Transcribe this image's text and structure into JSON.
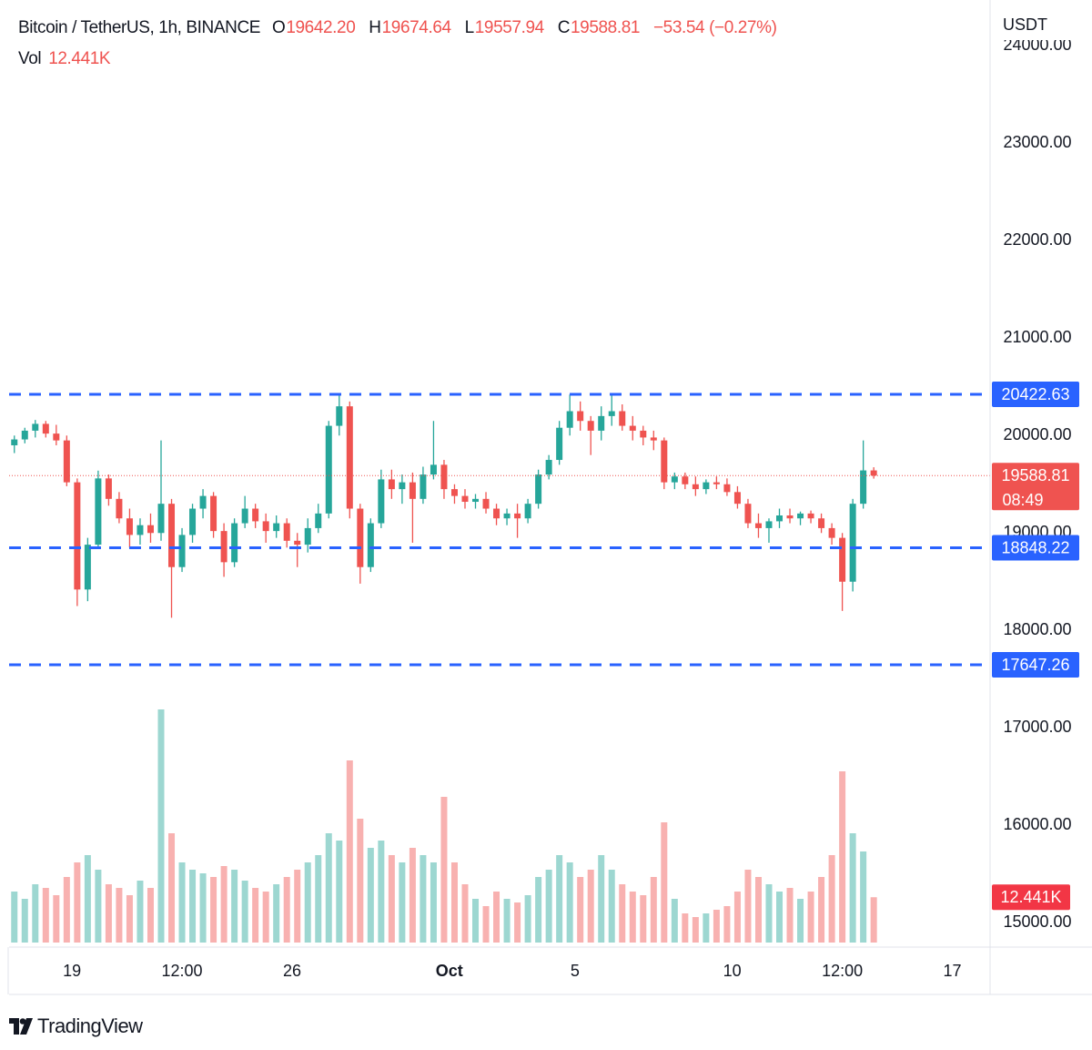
{
  "header": {
    "symbol": "Bitcoin / TetherUS, 1h, BINANCE",
    "ohlc": [
      {
        "label": "O",
        "value": "19642.20"
      },
      {
        "label": "H",
        "value": "19674.64"
      },
      {
        "label": "L",
        "value": "19557.94"
      },
      {
        "label": "C",
        "value": "19588.81"
      }
    ],
    "change": "−53.54 (−0.27%)",
    "volume_name": "Vol",
    "volume_value": "12.441K"
  },
  "chart_data": {
    "type": "candlestick",
    "currency": "USDT",
    "open": [
      19900,
      19960,
      20050,
      20120,
      20020,
      19950,
      19520,
      18420,
      18880,
      19560,
      19350,
      19150,
      18980,
      19080,
      19000,
      19300,
      18650,
      18980,
      19250,
      19380,
      19020,
      18700,
      19100,
      19250,
      19120,
      19020,
      19100,
      18920,
      18880,
      19050,
      19200,
      20100,
      20300,
      19250,
      18650,
      19100,
      19550,
      19450,
      19520,
      19350,
      19600,
      19700,
      19450,
      19380,
      19320,
      19350,
      19250,
      19150,
      19200,
      19150,
      19300,
      19600,
      19750,
      20080,
      20250,
      20150,
      20050,
      20200,
      20250,
      20100,
      20050,
      19980,
      19950,
      19520,
      19580,
      19500,
      19450,
      19520,
      19500,
      19420,
      19300,
      19100,
      19050,
      19120,
      19180,
      19150,
      19200,
      19150,
      19050,
      18950,
      18500,
      19300,
      19642.2
    ],
    "high": [
      20000,
      20080,
      20160,
      20150,
      20110,
      20000,
      19560,
      18950,
      19640,
      19600,
      19420,
      19250,
      19150,
      19200,
      19950,
      19350,
      19050,
      19300,
      19450,
      19420,
      19100,
      19150,
      19380,
      19300,
      19200,
      19180,
      19150,
      19000,
      19150,
      19300,
      20150,
      20420,
      20350,
      19300,
      19150,
      19650,
      19650,
      19600,
      19620,
      19680,
      20150,
      19750,
      19500,
      19450,
      19400,
      19420,
      19300,
      19250,
      19300,
      19350,
      19650,
      19800,
      20150,
      20420,
      20350,
      20200,
      20300,
      20430,
      20320,
      20200,
      20100,
      20050,
      19980,
      19620,
      19620,
      19580,
      19550,
      19580,
      19560,
      19480,
      19350,
      19200,
      19150,
      19250,
      19250,
      19220,
      19230,
      19200,
      19100,
      19000,
      19350,
      19950,
      19674.64
    ],
    "low": [
      19820,
      19920,
      19980,
      19980,
      19900,
      19480,
      18250,
      18300,
      18850,
      19280,
      19100,
      18850,
      18880,
      18900,
      18920,
      18130,
      18600,
      18900,
      19150,
      18950,
      18550,
      18650,
      19050,
      19050,
      18900,
      18950,
      18850,
      18650,
      18800,
      19000,
      19150,
      20000,
      19150,
      18480,
      18600,
      19050,
      19350,
      19300,
      18900,
      19300,
      19550,
      19350,
      19300,
      19250,
      19250,
      19200,
      19080,
      19080,
      18950,
      19100,
      19250,
      19550,
      19700,
      20000,
      20050,
      19800,
      19950,
      20100,
      20050,
      19950,
      19900,
      19850,
      19450,
      19450,
      19450,
      19380,
      19400,
      19450,
      19380,
      19250,
      19050,
      18950,
      18900,
      19050,
      19100,
      19080,
      19100,
      19000,
      18880,
      18200,
      18400,
      19250,
      19557.94
    ],
    "close": [
      19960,
      20050,
      20120,
      20020,
      19950,
      19520,
      18420,
      18880,
      19560,
      19350,
      19150,
      18980,
      19080,
      19000,
      19300,
      18650,
      18980,
      19250,
      19380,
      19020,
      18700,
      19100,
      19250,
      19120,
      19020,
      19100,
      18920,
      18880,
      19050,
      19200,
      20100,
      20300,
      19250,
      18650,
      19100,
      19550,
      19450,
      19520,
      19350,
      19600,
      19700,
      19450,
      19380,
      19320,
      19350,
      19250,
      19150,
      19200,
      19150,
      19300,
      19600,
      19750,
      20080,
      20250,
      20150,
      20050,
      20200,
      20250,
      20100,
      20050,
      19980,
      19950,
      19520,
      19580,
      19500,
      19450,
      19520,
      19500,
      19420,
      19300,
      19100,
      19050,
      19120,
      19180,
      19150,
      19200,
      19150,
      19050,
      18950,
      18500,
      19300,
      19642.2,
      19588.81
    ],
    "volume": [
      14000,
      12000,
      16000,
      15000,
      13000,
      18000,
      22000,
      24000,
      20000,
      16000,
      15000,
      13000,
      17000,
      15000,
      64000,
      30000,
      22000,
      20000,
      19000,
      18000,
      21000,
      20000,
      17000,
      15000,
      14000,
      16000,
      18000,
      20000,
      22000,
      24000,
      30000,
      28000,
      50000,
      34000,
      26000,
      28000,
      24000,
      22000,
      26000,
      24000,
      22000,
      40000,
      22000,
      16000,
      12000,
      10000,
      14000,
      12000,
      11000,
      13000,
      18000,
      20000,
      24000,
      22000,
      18000,
      20000,
      24000,
      20000,
      16000,
      14000,
      13000,
      18000,
      33000,
      12000,
      8000,
      7000,
      8000,
      9000,
      10000,
      14000,
      20000,
      18000,
      16000,
      14000,
      15000,
      12000,
      14000,
      18000,
      24000,
      47000,
      30000,
      25000,
      12441
    ],
    "up_color": "#26a69a",
    "down_color": "#ef5350",
    "ylim": [
      14750,
      24470
    ],
    "yticks": [
      {
        "value": 15000,
        "label": "15000.00"
      },
      {
        "value": 16000,
        "label": "16000.00"
      },
      {
        "value": 17000,
        "label": "17000.00"
      },
      {
        "value": 18000,
        "label": "18000.00"
      },
      {
        "value": 19000,
        "label": "19000.00"
      },
      {
        "value": 20000,
        "label": "20000.00"
      },
      {
        "value": 21000,
        "label": "21000.00"
      },
      {
        "value": 22000,
        "label": "22000.00"
      },
      {
        "value": 23000,
        "label": "23000.00"
      },
      {
        "value": 24000,
        "label": "24000.00"
      }
    ],
    "xlim": [
      0,
      93.6
    ],
    "xticks": [
      {
        "value": 6,
        "label": "19"
      },
      {
        "value": 16.5,
        "label": "12:00"
      },
      {
        "value": 27,
        "label": "26"
      },
      {
        "value": 42,
        "label": "Oct"
      },
      {
        "value": 54,
        "label": "5"
      },
      {
        "value": 69,
        "label": "10"
      },
      {
        "value": 79.5,
        "label": "12:00"
      },
      {
        "value": 90,
        "label": "17"
      }
    ],
    "volume_lim": [
      0,
      65000
    ],
    "grid": true,
    "levels": [
      20422.63,
      18848.22,
      17647.26
    ],
    "level_color": "#2962ff",
    "countdown": "08:49"
  },
  "footer": {
    "brand": "TradingView"
  }
}
